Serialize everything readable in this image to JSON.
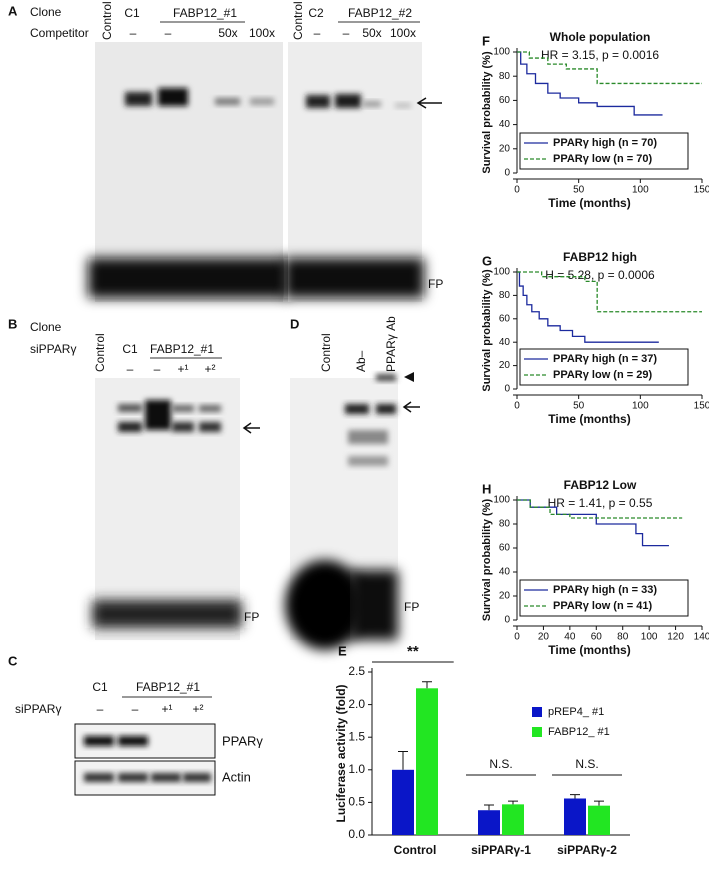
{
  "panels": {
    "A": {
      "letter": "A",
      "row1": "Clone",
      "row2": "Competitor",
      "left": {
        "control": "Control",
        "clone1": "C1",
        "clone2": "FABP12_#1",
        "comp": [
          "–",
          "–",
          "50x",
          "100x"
        ]
      },
      "right": {
        "control": "Control",
        "clone1": "C2",
        "clone2": "FABP12_#2",
        "comp": [
          "–",
          "–",
          "50x",
          "100x"
        ]
      },
      "fp": "FP"
    },
    "B": {
      "letter": "B",
      "row1": "Clone",
      "row2": "siPPARγ",
      "control": "Control",
      "clone1": "C1",
      "clone2": "FABP12_#1",
      "si": [
        "–",
        "–",
        "+¹",
        "+²"
      ],
      "fp": "FP"
    },
    "C": {
      "letter": "C",
      "clone1": "C1",
      "clone2": "FABP12_#1",
      "row2": "siPPARγ",
      "si": [
        "–",
        "–",
        "+¹",
        "+²"
      ],
      "blots": [
        "PPARγ",
        "Actin"
      ]
    },
    "D": {
      "letter": "D",
      "lanes": [
        "Control",
        "Ab–",
        "PPARγ Ab"
      ],
      "fp": "FP"
    }
  },
  "chart_data": [
    {
      "type": "bar",
      "letter": "E",
      "ylabel": "Luciferase activity (fold)",
      "categories": [
        "Control",
        "siPPARγ-1",
        "siPPARγ-2"
      ],
      "series": [
        {
          "name": "pREP4_ #1",
          "color": "#0a16c8",
          "values": [
            1.0,
            0.38,
            0.56
          ],
          "errors": [
            0.28,
            0.08,
            0.06
          ]
        },
        {
          "name": "FABP12_ #1",
          "color": "#22e622",
          "values": [
            2.25,
            0.47,
            0.45
          ],
          "errors": [
            0.1,
            0.05,
            0.07
          ]
        }
      ],
      "ylim": [
        0,
        2.5
      ],
      "yticks": [
        {
          "value": 0,
          "label": "0.0"
        },
        {
          "value": 0.5,
          "label": "0.5"
        },
        {
          "value": 1,
          "label": "1.0"
        },
        {
          "value": 1.5,
          "label": "1.5"
        },
        {
          "value": 2,
          "label": "2.0"
        },
        {
          "value": 2.5,
          "label": "2.5"
        }
      ],
      "annotations": [
        "**",
        "N.S.",
        "N.S."
      ]
    },
    {
      "type": "line",
      "letter": "F",
      "title": "Whole population",
      "subtitle": "HR = 3.15, p = 0.0016",
      "xlabel": "Time (months)",
      "ylabel": "Survival probability (%)",
      "series": [
        {
          "name": "PPARγ high (n = 70)",
          "color": "#1c2a9e",
          "dashed": false,
          "x": [
            0,
            3,
            3,
            8,
            8,
            15,
            15,
            25,
            25,
            35,
            35,
            50,
            50,
            65,
            65,
            95,
            95,
            118
          ],
          "values": [
            100,
            100,
            90,
            90,
            82,
            82,
            74,
            74,
            66,
            66,
            62,
            62,
            58,
            58,
            55,
            55,
            48,
            48
          ]
        },
        {
          "name": "PPARγ low (n = 70)",
          "color": "#2a8a2a",
          "dashed": true,
          "x": [
            0,
            10,
            10,
            25,
            25,
            40,
            40,
            65,
            65,
            150
          ],
          "values": [
            100,
            100,
            95,
            95,
            90,
            90,
            86,
            86,
            74,
            74
          ]
        }
      ],
      "xlim": [
        0,
        150
      ],
      "xticks": [
        0,
        50,
        100,
        150
      ],
      "ylim": [
        0,
        100
      ],
      "yticks": [
        0,
        20,
        40,
        60,
        80,
        100
      ]
    },
    {
      "type": "line",
      "letter": "G",
      "title": "FABP12 high",
      "subtitle": "H = 5.28, p = 0.0006",
      "xlabel": "Time (months)",
      "ylabel": "Survival probability (%)",
      "series": [
        {
          "name": "PPARγ high (n = 37)",
          "color": "#1c2a9e",
          "dashed": false,
          "x": [
            0,
            2,
            2,
            5,
            5,
            8,
            8,
            12,
            12,
            18,
            18,
            25,
            25,
            35,
            35,
            45,
            45,
            55,
            55,
            115
          ],
          "values": [
            100,
            100,
            88,
            88,
            80,
            80,
            72,
            72,
            66,
            66,
            60,
            60,
            54,
            54,
            50,
            50,
            45,
            45,
            40,
            40
          ]
        },
        {
          "name": "PPARγ low (n = 29)",
          "color": "#2a8a2a",
          "dashed": true,
          "x": [
            0,
            20,
            20,
            55,
            55,
            65,
            65,
            150
          ],
          "values": [
            100,
            100,
            96,
            96,
            92,
            92,
            66,
            66
          ]
        }
      ],
      "xlim": [
        0,
        150
      ],
      "xticks": [
        0,
        50,
        100,
        150
      ],
      "ylim": [
        0,
        100
      ],
      "yticks": [
        0,
        20,
        40,
        60,
        80,
        100
      ]
    },
    {
      "type": "line",
      "letter": "H",
      "title": "FABP12 Low",
      "subtitle": "HR = 1.41, p = 0.55",
      "xlabel": "Time (months)",
      "ylabel": "Survival probability (%)",
      "series": [
        {
          "name": "PPARγ high (n = 33)",
          "color": "#1c2a9e",
          "dashed": false,
          "x": [
            0,
            10,
            10,
            30,
            30,
            60,
            60,
            90,
            90,
            95,
            95,
            115
          ],
          "values": [
            100,
            100,
            94,
            94,
            88,
            88,
            80,
            80,
            72,
            72,
            62,
            62
          ]
        },
        {
          "name": "PPARγ low (n = 41)",
          "color": "#2a8a2a",
          "dashed": true,
          "x": [
            0,
            10,
            10,
            25,
            25,
            40,
            40,
            125
          ],
          "values": [
            100,
            100,
            94,
            94,
            88,
            88,
            85,
            85
          ]
        }
      ],
      "xlim": [
        0,
        140
      ],
      "xticks": [
        0,
        20,
        40,
        60,
        80,
        100,
        120,
        140
      ],
      "ylim": [
        0,
        100
      ],
      "yticks": [
        0,
        20,
        40,
        60,
        80,
        100
      ]
    }
  ]
}
